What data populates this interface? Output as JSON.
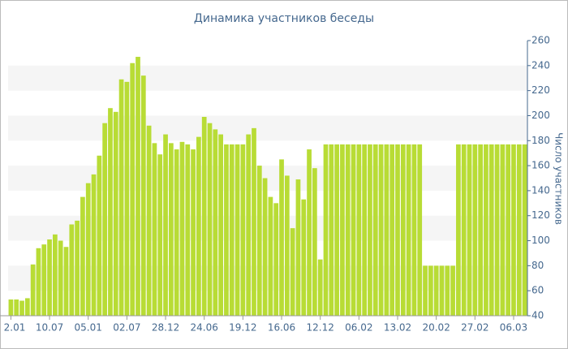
{
  "chart_data": {
    "type": "bar",
    "title": "Динамика участников беседы",
    "y_label": "Число участников",
    "categories": [
      "2.01",
      null,
      null,
      null,
      null,
      null,
      null,
      "10.07",
      null,
      null,
      null,
      null,
      null,
      null,
      "05.01",
      null,
      null,
      null,
      null,
      null,
      null,
      "02.07",
      null,
      null,
      null,
      null,
      null,
      null,
      "28.12",
      null,
      null,
      null,
      null,
      null,
      null,
      "24.06",
      null,
      null,
      null,
      null,
      null,
      null,
      "19.12",
      null,
      null,
      null,
      null,
      null,
      null,
      "16.06",
      null,
      null,
      null,
      null,
      null,
      null,
      "12.12",
      null,
      null,
      null,
      null,
      null,
      null,
      "06.02",
      null,
      null,
      null,
      null,
      null,
      null,
      "13.02",
      null,
      null,
      null,
      null,
      null,
      null,
      "20.02",
      null,
      null,
      null,
      null,
      null,
      null,
      "27.02",
      null,
      null,
      null,
      null,
      null,
      null,
      "06.03",
      null,
      null
    ],
    "values": [
      53,
      53,
      52,
      54,
      81,
      94,
      97,
      101,
      105,
      100,
      95,
      113,
      116,
      135,
      146,
      153,
      168,
      194,
      206,
      203,
      229,
      227,
      242,
      247,
      232,
      192,
      178,
      169,
      185,
      178,
      173,
      179,
      177,
      173,
      183,
      199,
      194,
      189,
      185,
      177,
      177,
      177,
      177,
      185,
      190,
      160,
      150,
      135,
      130,
      165,
      152,
      110,
      149,
      133,
      173,
      158,
      85,
      177,
      177,
      177,
      177,
      177,
      177,
      177,
      177,
      177,
      177,
      177,
      177,
      177,
      177,
      177,
      177,
      177,
      177,
      80,
      80,
      80,
      80,
      80,
      80,
      177,
      177,
      177,
      177,
      177,
      177,
      177,
      177,
      177,
      177,
      177,
      177,
      177
    ],
    "color": "#b8dc35",
    "ylim": [
      40,
      260
    ],
    "yticks": [
      40,
      60,
      80,
      100,
      120,
      140,
      160,
      180,
      200,
      220,
      240,
      260
    ]
  }
}
